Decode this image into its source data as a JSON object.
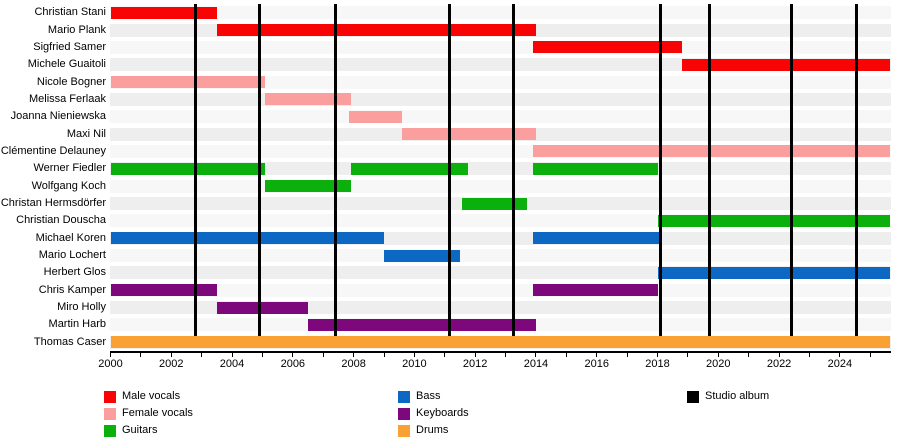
{
  "chart_data": {
    "type": "gantt-timeline",
    "description": "Band membership timeline",
    "x_axis": {
      "start_year": 2000,
      "end_year": 2025.65,
      "minor_tick_every": 1,
      "label_every": 2,
      "tick_labels": [
        "2000",
        "2002",
        "2004",
        "2006",
        "2008",
        "2010",
        "2012",
        "2014",
        "2016",
        "2018",
        "2020",
        "2022",
        "2024"
      ]
    },
    "roles": {
      "male_vocals": {
        "label": "Male vocals",
        "color": "#f90404"
      },
      "female_vocals": {
        "label": "Female vocals",
        "color": "#fa9e9e"
      },
      "guitars": {
        "label": "Guitars",
        "color": "#0cb00c"
      },
      "bass": {
        "label": "Bass",
        "color": "#0d68c4"
      },
      "keyboards": {
        "label": "Keyboards",
        "color": "#7c087c"
      },
      "drums": {
        "label": "Drums",
        "color": "#f9a233"
      },
      "studio_album": {
        "label": "Studio album",
        "color": "#000000"
      }
    },
    "rows": [
      {
        "name": "Christian Stani",
        "role": "male_vocals",
        "segments": [
          [
            2000.0,
            2003.5
          ]
        ]
      },
      {
        "name": "Mario Plank",
        "role": "male_vocals",
        "segments": [
          [
            2003.5,
            2014.0
          ]
        ]
      },
      {
        "name": "Sigfried Samer",
        "role": "male_vocals",
        "segments": [
          [
            2013.9,
            2018.8
          ]
        ]
      },
      {
        "name": "Michele Guaitoli",
        "role": "male_vocals",
        "segments": [
          [
            2018.8,
            2025.65
          ]
        ]
      },
      {
        "name": "Nicole Bogner",
        "role": "female_vocals",
        "segments": [
          [
            2000.0,
            2005.1
          ]
        ]
      },
      {
        "name": "Melissa Ferlaak",
        "role": "female_vocals",
        "segments": [
          [
            2005.1,
            2007.9
          ]
        ]
      },
      {
        "name": "Joanna Nieniewska",
        "role": "female_vocals",
        "segments": [
          [
            2007.85,
            2009.6
          ]
        ]
      },
      {
        "name": "Maxi Nil",
        "role": "female_vocals",
        "segments": [
          [
            2009.6,
            2014.0
          ]
        ]
      },
      {
        "name": "Clémentine Delauney",
        "role": "female_vocals",
        "segments": [
          [
            2013.9,
            2025.65
          ]
        ]
      },
      {
        "name": "Werner Fiedler",
        "role": "guitars",
        "segments": [
          [
            2000.0,
            2005.1
          ],
          [
            2007.9,
            2011.75
          ],
          [
            2013.9,
            2018.0
          ]
        ]
      },
      {
        "name": "Wolfgang Koch",
        "role": "guitars",
        "segments": [
          [
            2005.1,
            2007.9
          ]
        ]
      },
      {
        "name": "Christan Hermsdörfer",
        "role": "guitars",
        "segments": [
          [
            2011.55,
            2013.7
          ]
        ]
      },
      {
        "name": "Christian Douscha",
        "role": "guitars",
        "segments": [
          [
            2018.0,
            2025.65
          ]
        ]
      },
      {
        "name": "Michael Koren",
        "role": "bass",
        "segments": [
          [
            2000.0,
            2009.0
          ],
          [
            2013.9,
            2018.1
          ]
        ]
      },
      {
        "name": "Mario Lochert",
        "role": "bass",
        "segments": [
          [
            2009.0,
            2011.5
          ]
        ]
      },
      {
        "name": "Herbert Glos",
        "role": "bass",
        "segments": [
          [
            2018.0,
            2025.65
          ]
        ]
      },
      {
        "name": "Chris Kamper",
        "role": "keyboards",
        "segments": [
          [
            2000.0,
            2003.5
          ],
          [
            2013.9,
            2018.0
          ]
        ]
      },
      {
        "name": "Miro Holly",
        "role": "keyboards",
        "segments": [
          [
            2003.5,
            2006.5
          ]
        ]
      },
      {
        "name": "Martin Harb",
        "role": "keyboards",
        "segments": [
          [
            2006.5,
            2014.0
          ]
        ]
      },
      {
        "name": "Thomas Caser",
        "role": "drums",
        "segments": [
          [
            2000.0,
            2025.65
          ]
        ]
      }
    ],
    "studio_albums_years": [
      2002.8,
      2004.9,
      2007.42,
      2011.17,
      2013.25,
      2018.1,
      2019.7,
      2022.4,
      2024.55
    ],
    "legend": {
      "columns": [
        [
          "male_vocals",
          "female_vocals",
          "guitars"
        ],
        [
          "bass",
          "keyboards",
          "drums"
        ],
        [
          "studio_album"
        ]
      ]
    }
  }
}
